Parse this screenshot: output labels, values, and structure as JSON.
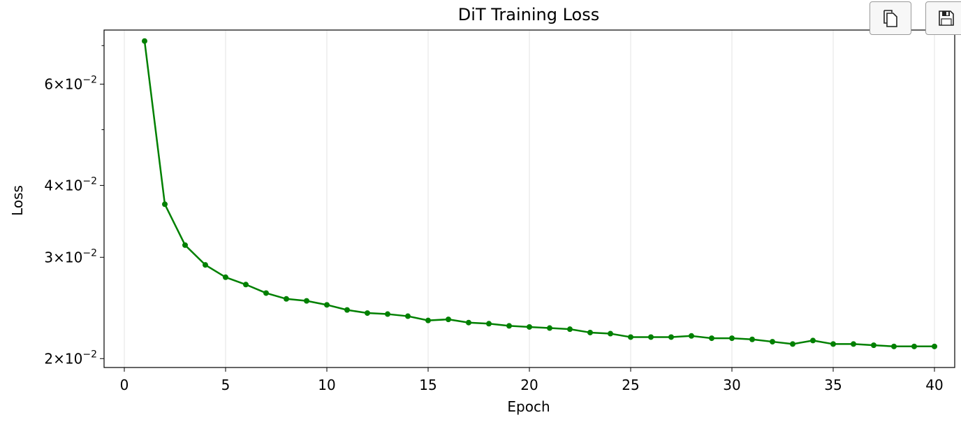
{
  "toolbar": {
    "copy_icon": "copy-icon",
    "save_icon": "save-icon"
  },
  "chart_data": {
    "type": "line",
    "title": "DiT Training Loss",
    "xlabel": "Epoch",
    "ylabel": "Loss",
    "yscale": "log",
    "xlim": [
      -1,
      41
    ],
    "ylim": [
      0.0193,
      0.0745
    ],
    "grid": "vertical",
    "color": "#008000",
    "xticks": [
      0,
      5,
      10,
      15,
      20,
      25,
      30,
      35,
      40
    ],
    "yticks": [
      {
        "value": 0.02,
        "mantissa": "2",
        "base": "10",
        "exp": "−2"
      },
      {
        "value": 0.03,
        "mantissa": "3",
        "base": "10",
        "exp": "−2"
      },
      {
        "value": 0.04,
        "mantissa": "4",
        "base": "10",
        "exp": "−2"
      },
      {
        "value": 0.06,
        "mantissa": "6",
        "base": "10",
        "exp": "−2"
      }
    ],
    "yminor": [
      0.05,
      0.07
    ],
    "series": [
      {
        "x": [
          1,
          2,
          3,
          4,
          5,
          6,
          7,
          8,
          9,
          10,
          11,
          12,
          13,
          14,
          15,
          16,
          17,
          18,
          19,
          20,
          21,
          22,
          23,
          24,
          25,
          26,
          27,
          28,
          29,
          30,
          31,
          32,
          33,
          34,
          35,
          36,
          37,
          38,
          39,
          40
        ],
        "values": [
          0.0713,
          0.0371,
          0.0315,
          0.0291,
          0.0277,
          0.0269,
          0.026,
          0.0254,
          0.0252,
          0.0248,
          0.0243,
          0.024,
          0.0239,
          0.0237,
          0.0233,
          0.0234,
          0.0231,
          0.023,
          0.0228,
          0.0227,
          0.0226,
          0.0225,
          0.0222,
          0.0221,
          0.0218,
          0.0218,
          0.0218,
          0.0219,
          0.0217,
          0.0217,
          0.0216,
          0.0214,
          0.0212,
          0.0215,
          0.0212,
          0.0212,
          0.0211,
          0.021,
          0.021,
          0.021
        ]
      }
    ]
  }
}
